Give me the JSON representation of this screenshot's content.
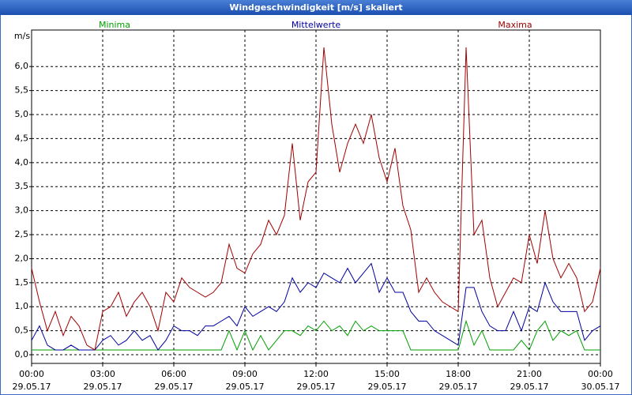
{
  "chart_data": {
    "type": "line",
    "title": "Windgeschwindigkeit [m/s] skaliert",
    "y_label": "m/s",
    "x": [
      0,
      20,
      40,
      60,
      80,
      100,
      120,
      140,
      160,
      180,
      200,
      220,
      240,
      260,
      280,
      300,
      320,
      340,
      360,
      380,
      400,
      420,
      440,
      460,
      480,
      500,
      520,
      540,
      560,
      580,
      600,
      620,
      640,
      660,
      680,
      700,
      720,
      740,
      760,
      780,
      800,
      820,
      840,
      860,
      880,
      900,
      920,
      940,
      960,
      980,
      1000,
      1020,
      1040,
      1060,
      1080,
      1100,
      1120,
      1140,
      1160,
      1180,
      1200,
      1220,
      1240,
      1260,
      1280,
      1300,
      1320,
      1340,
      1360,
      1380,
      1400,
      1420,
      1440
    ],
    "series": [
      {
        "name": "Minima",
        "color": "#00a000",
        "values": [
          0.1,
          0.1,
          0.1,
          0.1,
          0.1,
          0.1,
          0.1,
          0.1,
          0.1,
          0.1,
          0.1,
          0.1,
          0.1,
          0.1,
          0.1,
          0.1,
          0.1,
          0.1,
          0.1,
          0.1,
          0.1,
          0.1,
          0.1,
          0.1,
          0.1,
          0.5,
          0.1,
          0.5,
          0.1,
          0.4,
          0.1,
          0.3,
          0.5,
          0.5,
          0.4,
          0.6,
          0.5,
          0.7,
          0.5,
          0.6,
          0.4,
          0.7,
          0.5,
          0.6,
          0.5,
          0.5,
          0.5,
          0.5,
          0.1,
          0.1,
          0.1,
          0.1,
          0.1,
          0.1,
          0.1,
          0.7,
          0.2,
          0.5,
          0.1,
          0.1,
          0.1,
          0.1,
          0.3,
          0.1,
          0.5,
          0.7,
          0.3,
          0.5,
          0.4,
          0.5,
          0.1,
          0.1,
          0.1
        ]
      },
      {
        "name": "Mittelwerte",
        "color": "#0000a0",
        "values": [
          0.3,
          0.6,
          0.2,
          0.1,
          0.1,
          0.2,
          0.1,
          0.1,
          0.1,
          0.3,
          0.4,
          0.2,
          0.3,
          0.5,
          0.3,
          0.4,
          0.1,
          0.3,
          0.6,
          0.5,
          0.5,
          0.4,
          0.6,
          0.6,
          0.7,
          0.8,
          0.6,
          1.0,
          0.8,
          0.9,
          1.0,
          0.9,
          1.1,
          1.6,
          1.3,
          1.5,
          1.4,
          1.7,
          1.6,
          1.5,
          1.8,
          1.5,
          1.7,
          1.9,
          1.3,
          1.6,
          1.3,
          1.3,
          0.9,
          0.7,
          0.7,
          0.5,
          0.4,
          0.3,
          0.2,
          1.4,
          1.4,
          0.9,
          0.6,
          0.5,
          0.5,
          0.9,
          0.5,
          1.0,
          0.9,
          1.5,
          1.1,
          0.9,
          0.9,
          0.9,
          0.3,
          0.5,
          0.6
        ]
      },
      {
        "name": "Maxima",
        "color": "#a00000",
        "values": [
          1.8,
          1.1,
          0.5,
          0.9,
          0.4,
          0.8,
          0.6,
          0.2,
          0.1,
          0.9,
          1.0,
          1.3,
          0.8,
          1.1,
          1.3,
          1.0,
          0.5,
          1.3,
          1.1,
          1.6,
          1.4,
          1.3,
          1.2,
          1.3,
          1.5,
          2.3,
          1.8,
          1.7,
          2.1,
          2.3,
          2.8,
          2.5,
          2.9,
          4.4,
          2.8,
          3.6,
          3.8,
          6.4,
          4.8,
          3.8,
          4.4,
          4.8,
          4.4,
          5.0,
          4.1,
          3.6,
          4.3,
          3.1,
          2.6,
          1.3,
          1.6,
          1.3,
          1.1,
          1.0,
          0.9,
          6.4,
          2.5,
          2.8,
          1.6,
          1.0,
          1.3,
          1.6,
          1.5,
          2.5,
          1.9,
          3.0,
          2.0,
          1.6,
          1.9,
          1.6,
          0.9,
          1.1,
          1.8
        ]
      }
    ],
    "xlim": [
      0,
      1440
    ],
    "xticks": [
      {
        "value": 0,
        "label": "00:00 29.05.17"
      },
      {
        "value": 180,
        "label": "03:00 29.05.17"
      },
      {
        "value": 360,
        "label": "06:00 29.05.17"
      },
      {
        "value": 540,
        "label": "09:00 29.05.17"
      },
      {
        "value": 720,
        "label": "12:00 29.05.17"
      },
      {
        "value": 900,
        "label": "15:00 29.05.17"
      },
      {
        "value": 1080,
        "label": "18:00 29.05.17"
      },
      {
        "value": 1260,
        "label": "21:00 29.05.17"
      },
      {
        "value": 1440,
        "label": "00:00 30.05.17"
      }
    ],
    "ylim": [
      -0.18,
      6.76
    ],
    "yticks": [
      {
        "value": 0,
        "label": "0,0"
      },
      {
        "value": 0.5,
        "label": "0,5"
      },
      {
        "value": 1,
        "label": "1,0"
      },
      {
        "value": 1.5,
        "label": "1,5"
      },
      {
        "value": 2,
        "label": "2,0"
      },
      {
        "value": 2.5,
        "label": "2,5"
      },
      {
        "value": 3,
        "label": "3,0"
      },
      {
        "value": 3.5,
        "label": "3,5"
      },
      {
        "value": 4,
        "label": "4,0"
      },
      {
        "value": 4.5,
        "label": "4,5"
      },
      {
        "value": 5,
        "label": "5,0"
      },
      {
        "value": 5.5,
        "label": "5,5"
      },
      {
        "value": 6,
        "label": "6,0"
      }
    ],
    "grid": true
  }
}
